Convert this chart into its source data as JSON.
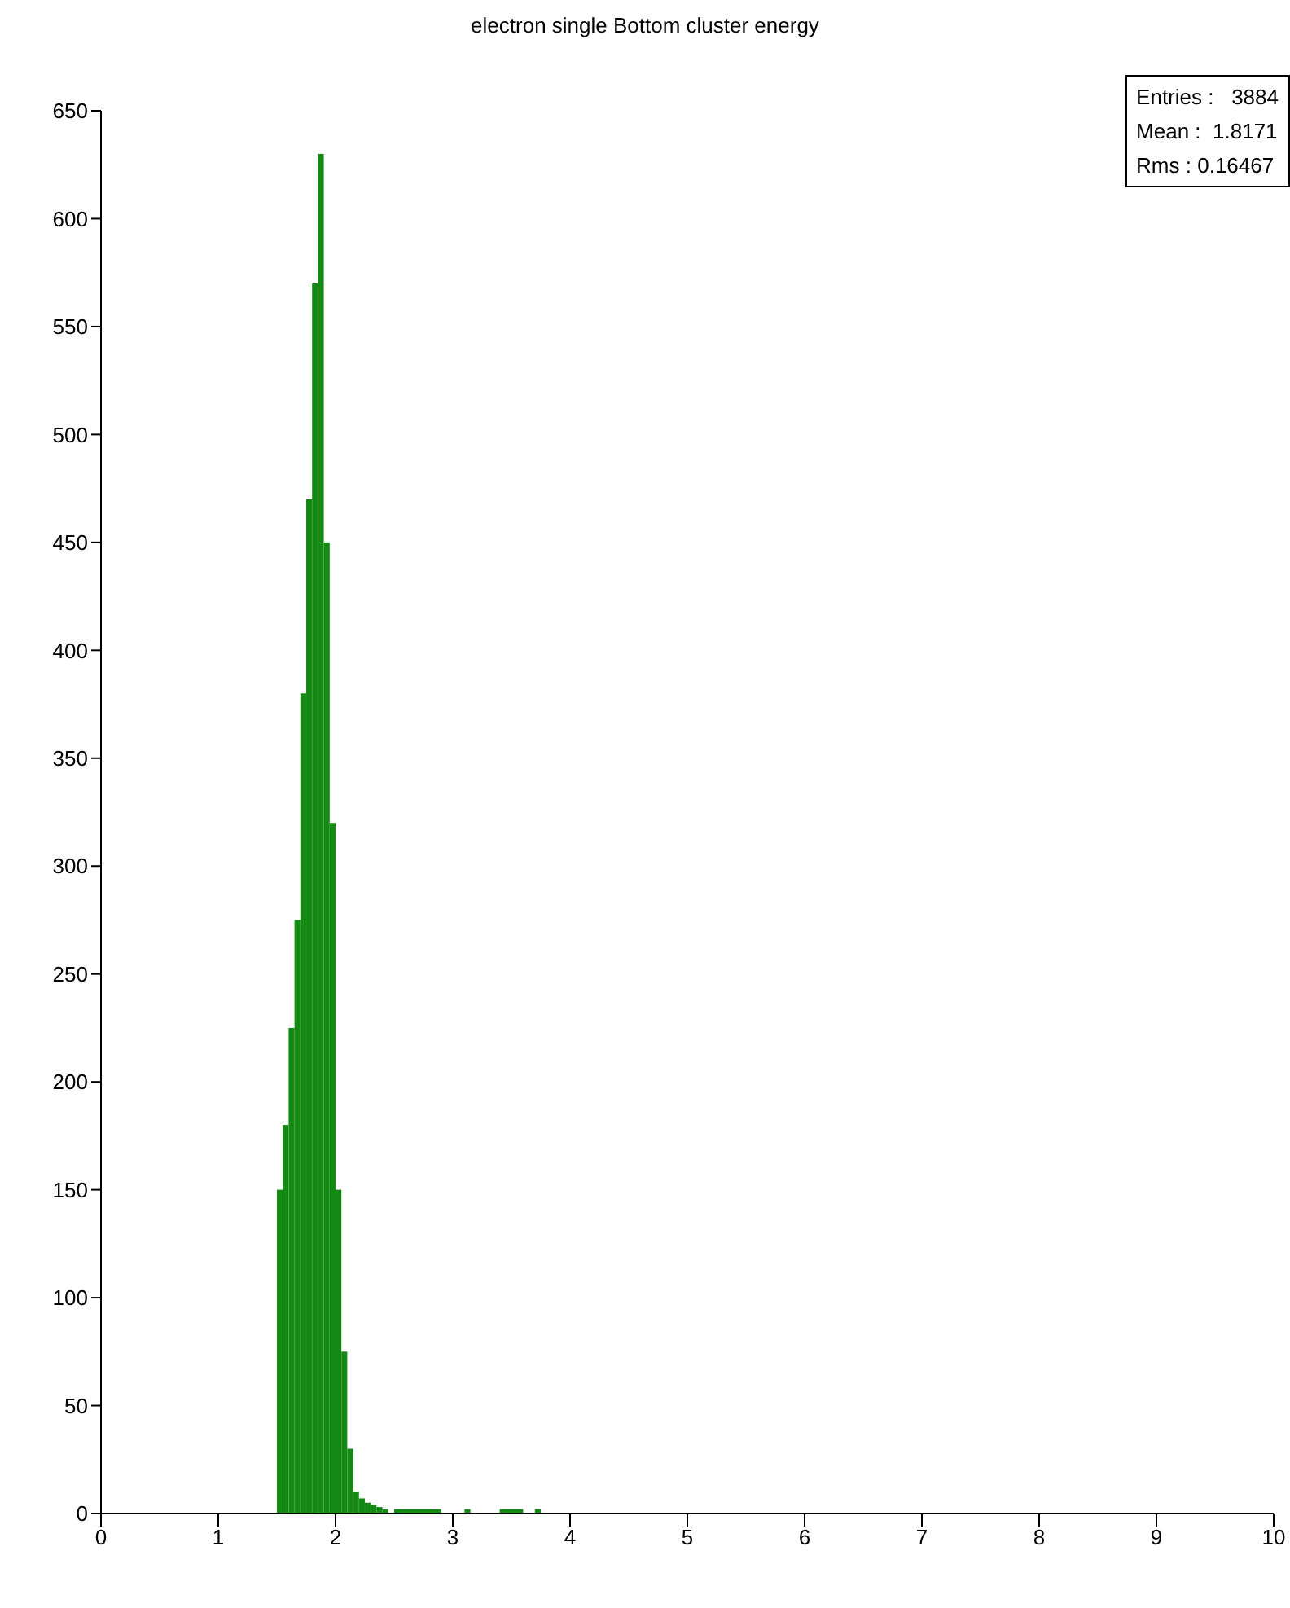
{
  "chart_data": {
    "type": "histogram",
    "title": "electron single Bottom cluster energy",
    "bins": [
      1.5,
      1.55,
      1.6,
      1.65,
      1.7,
      1.75,
      1.8,
      1.85,
      1.9,
      1.95,
      2.0,
      2.05,
      2.1,
      2.15,
      2.2,
      2.25,
      2.3,
      2.35,
      2.4,
      2.45,
      2.5,
      2.9,
      3.1,
      3.15,
      3.4,
      3.6,
      3.7,
      3.75
    ],
    "values": [
      150,
      180,
      225,
      275,
      380,
      470,
      570,
      630,
      450,
      320,
      150,
      75,
      30,
      10,
      7,
      5,
      4,
      3,
      2,
      0,
      2,
      0,
      2,
      0,
      2,
      0,
      2
    ],
    "color": "#148a14",
    "xlim": [
      0,
      10
    ],
    "xticks": [
      0,
      1,
      2,
      3,
      4,
      5,
      6,
      7,
      8,
      9,
      10
    ],
    "ylim": [
      0,
      650
    ],
    "yticks": [
      0,
      50,
      100,
      150,
      200,
      250,
      300,
      350,
      400,
      450,
      500,
      550,
      600,
      650
    ],
    "grid": false,
    "annotations": [
      "Entries :   3884",
      "Mean :  1.8171",
      "Rms : 0.16467"
    ]
  }
}
